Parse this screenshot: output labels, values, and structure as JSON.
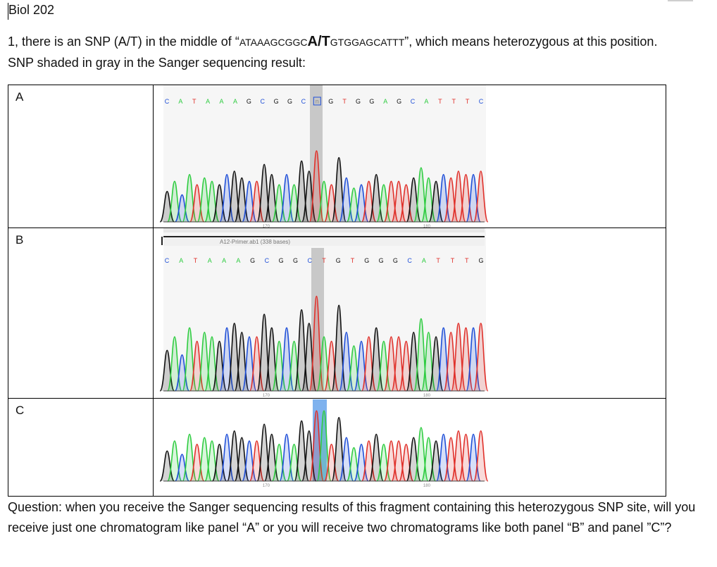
{
  "course": "Biol 202",
  "question1": {
    "text_before": "1, there is an SNP (A/T) in the middle of “",
    "seq_left": "ATAAAGCGGC",
    "snp": "A/T",
    "seq_right": "GTGGAGCATTT",
    "text_after": "”, which means heterozygous at this position.  SNP shaded in gray in the Sanger sequencing result:"
  },
  "panels": [
    {
      "label": "A",
      "bases": [
        "C",
        "A",
        "T",
        "A",
        "A",
        "A",
        "G",
        "C",
        "G",
        "G",
        "C",
        "n",
        "G",
        "T",
        "G",
        "G",
        "A",
        "G",
        "C",
        "A",
        "T",
        "T",
        "T",
        "C"
      ],
      "highlight_index": 11,
      "highlight_color": "#c8c8c8",
      "tick_labels": [
        "170",
        "180"
      ]
    },
    {
      "label": "B",
      "file_label": "A12-Primer.ab1  (338 bases)",
      "bases": [
        "C",
        "A",
        "T",
        "A",
        "A",
        "A",
        "G",
        "C",
        "G",
        "G",
        "C",
        "T",
        "G",
        "T",
        "G",
        "G",
        "G",
        "C",
        "A",
        "T",
        "T",
        "T",
        "G"
      ],
      "highlight_index": 11,
      "highlight_color": "#c8c8c8",
      "tick_labels": [
        "170",
        "180"
      ]
    },
    {
      "label": "C",
      "highlight_color": "#7fb2ee",
      "tick_labels": [
        "170",
        "180"
      ]
    }
  ],
  "base_colors": {
    "A": "#2ecc40",
    "C": "#1f4fd8",
    "G": "#111111",
    "T": "#e0302a",
    "N": "#888888"
  },
  "question2": "Question: when you receive the Sanger sequencing results of this fragment containing this heterozygous SNP site, will you receive just one chromatogram like panel “A” or you will receive two chromatograms like both panel  “B” and panel ”C”?"
}
